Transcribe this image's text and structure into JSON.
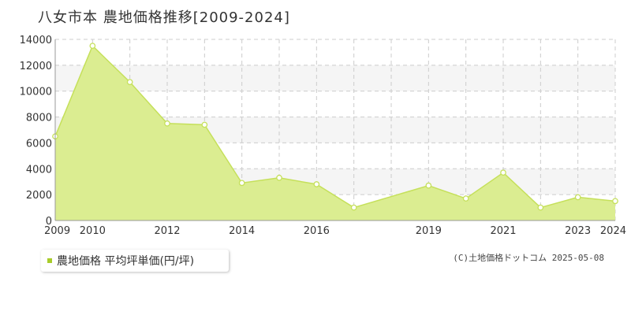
{
  "header": {
    "title": "八女市本 農地価格推移[2009-2024]"
  },
  "legend": {
    "label": "農地価格 平均坪単価(円/坪)"
  },
  "credit": {
    "text": "(C)土地価格ドットコム 2025-05-08"
  },
  "colors": {
    "fill": "#dbed91",
    "line": "#c5e05a",
    "marker_fill": "#ffffff",
    "marker_stroke": "#c5e05a",
    "swatch": "#a8cc2a",
    "grid": "#cccccc",
    "band": "#f5f5f5"
  },
  "chart_data": {
    "type": "area",
    "title": "八女市本 農地価格推移[2009-2024]",
    "xlabel": "",
    "ylabel": "",
    "xlim": [
      2009,
      2024
    ],
    "ylim": [
      0,
      14000
    ],
    "y_ticks": [
      0,
      2000,
      4000,
      6000,
      8000,
      10000,
      12000,
      14000
    ],
    "x_tick_labels": [
      2009,
      2010,
      2012,
      2014,
      2016,
      2019,
      2021,
      2023,
      2024
    ],
    "grid": true,
    "legend_position": "bottom-left",
    "series": [
      {
        "name": "農地価格 平均坪単価(円/坪)",
        "x": [
          2009,
          2010,
          2011,
          2012,
          2013,
          2014,
          2015,
          2016,
          2017,
          2019,
          2020,
          2021,
          2022,
          2023,
          2024
        ],
        "values": [
          6500,
          13500,
          10700,
          7500,
          7400,
          2900,
          3300,
          2800,
          1000,
          2700,
          1700,
          3700,
          1000,
          1800,
          1500
        ]
      }
    ]
  }
}
